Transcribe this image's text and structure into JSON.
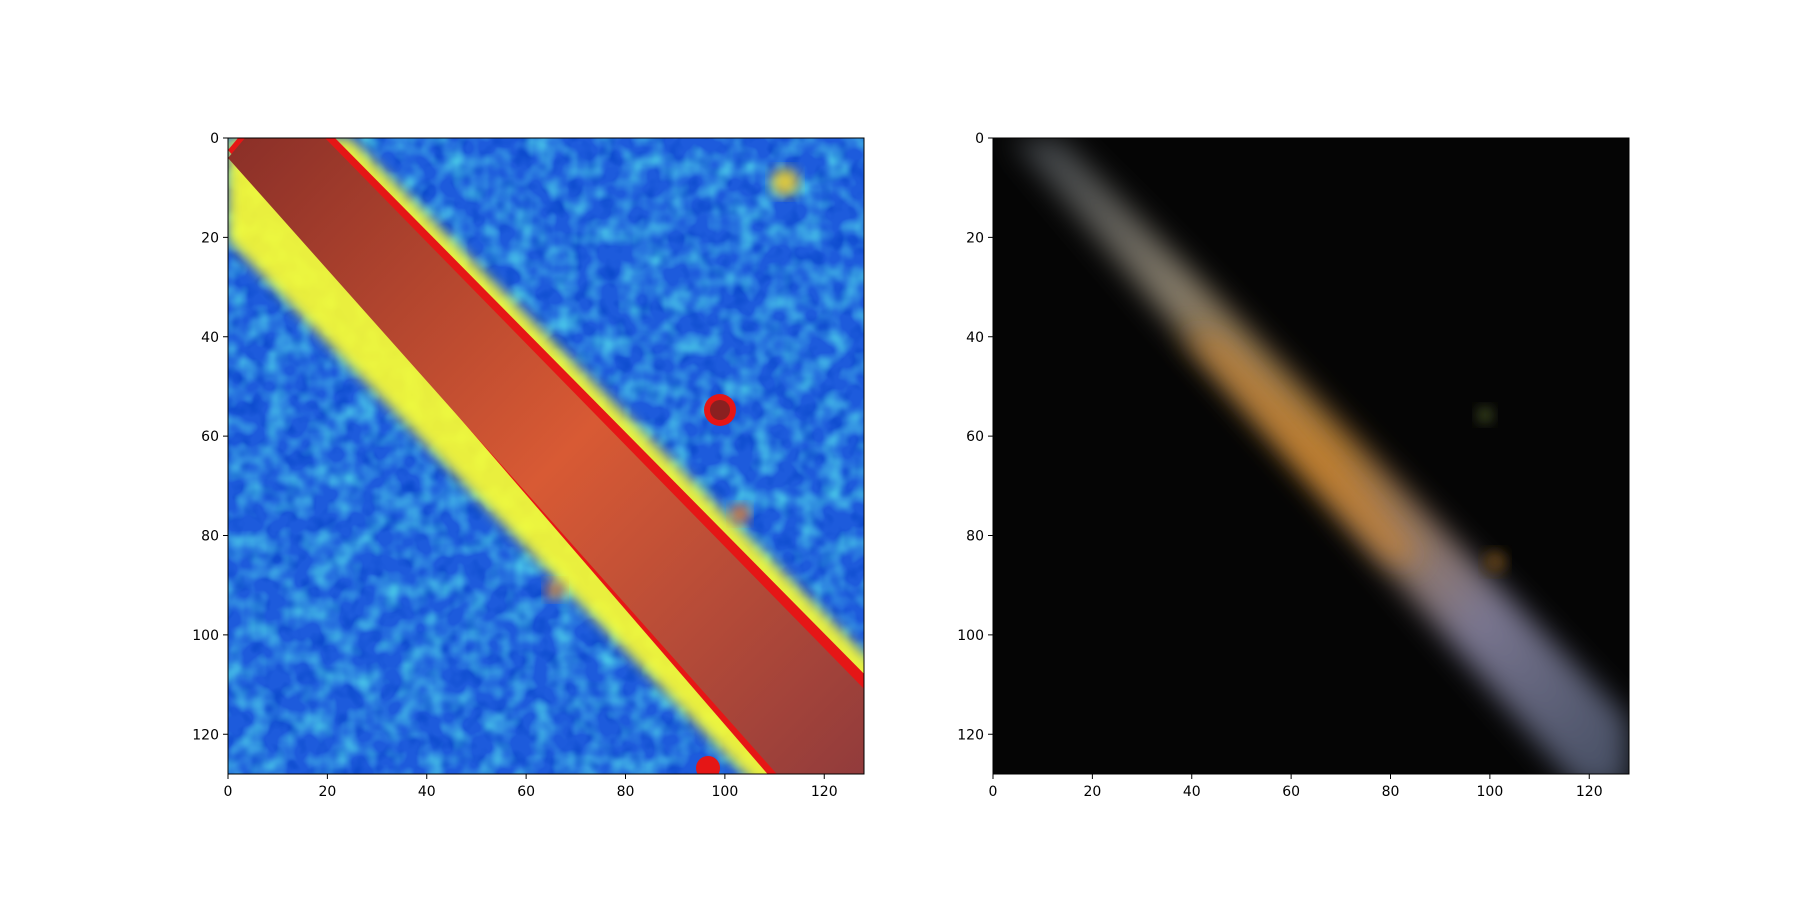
{
  "figure": {
    "panels": [
      {
        "id": "left",
        "content": "heatmap-jet",
        "x_ticks": [
          "0",
          "20",
          "40",
          "60",
          "80",
          "100",
          "120"
        ],
        "y_ticks": [
          "0",
          "20",
          "40",
          "60",
          "80",
          "100",
          "120"
        ],
        "xlim": [
          0,
          128
        ],
        "ylim": [
          0,
          128
        ]
      },
      {
        "id": "right",
        "content": "edge-on-galaxy-rgb",
        "x_ticks": [
          "0",
          "20",
          "40",
          "60",
          "80",
          "100",
          "120"
        ],
        "y_ticks": [
          "0",
          "20",
          "40",
          "60",
          "80",
          "100",
          "120"
        ],
        "xlim": [
          0,
          128
        ],
        "ylim": [
          0,
          128
        ]
      }
    ]
  },
  "colors": {
    "heatmap_background": "#1d5bdc",
    "heatmap_band": "#a8392c",
    "galaxy_background": "#050505"
  }
}
